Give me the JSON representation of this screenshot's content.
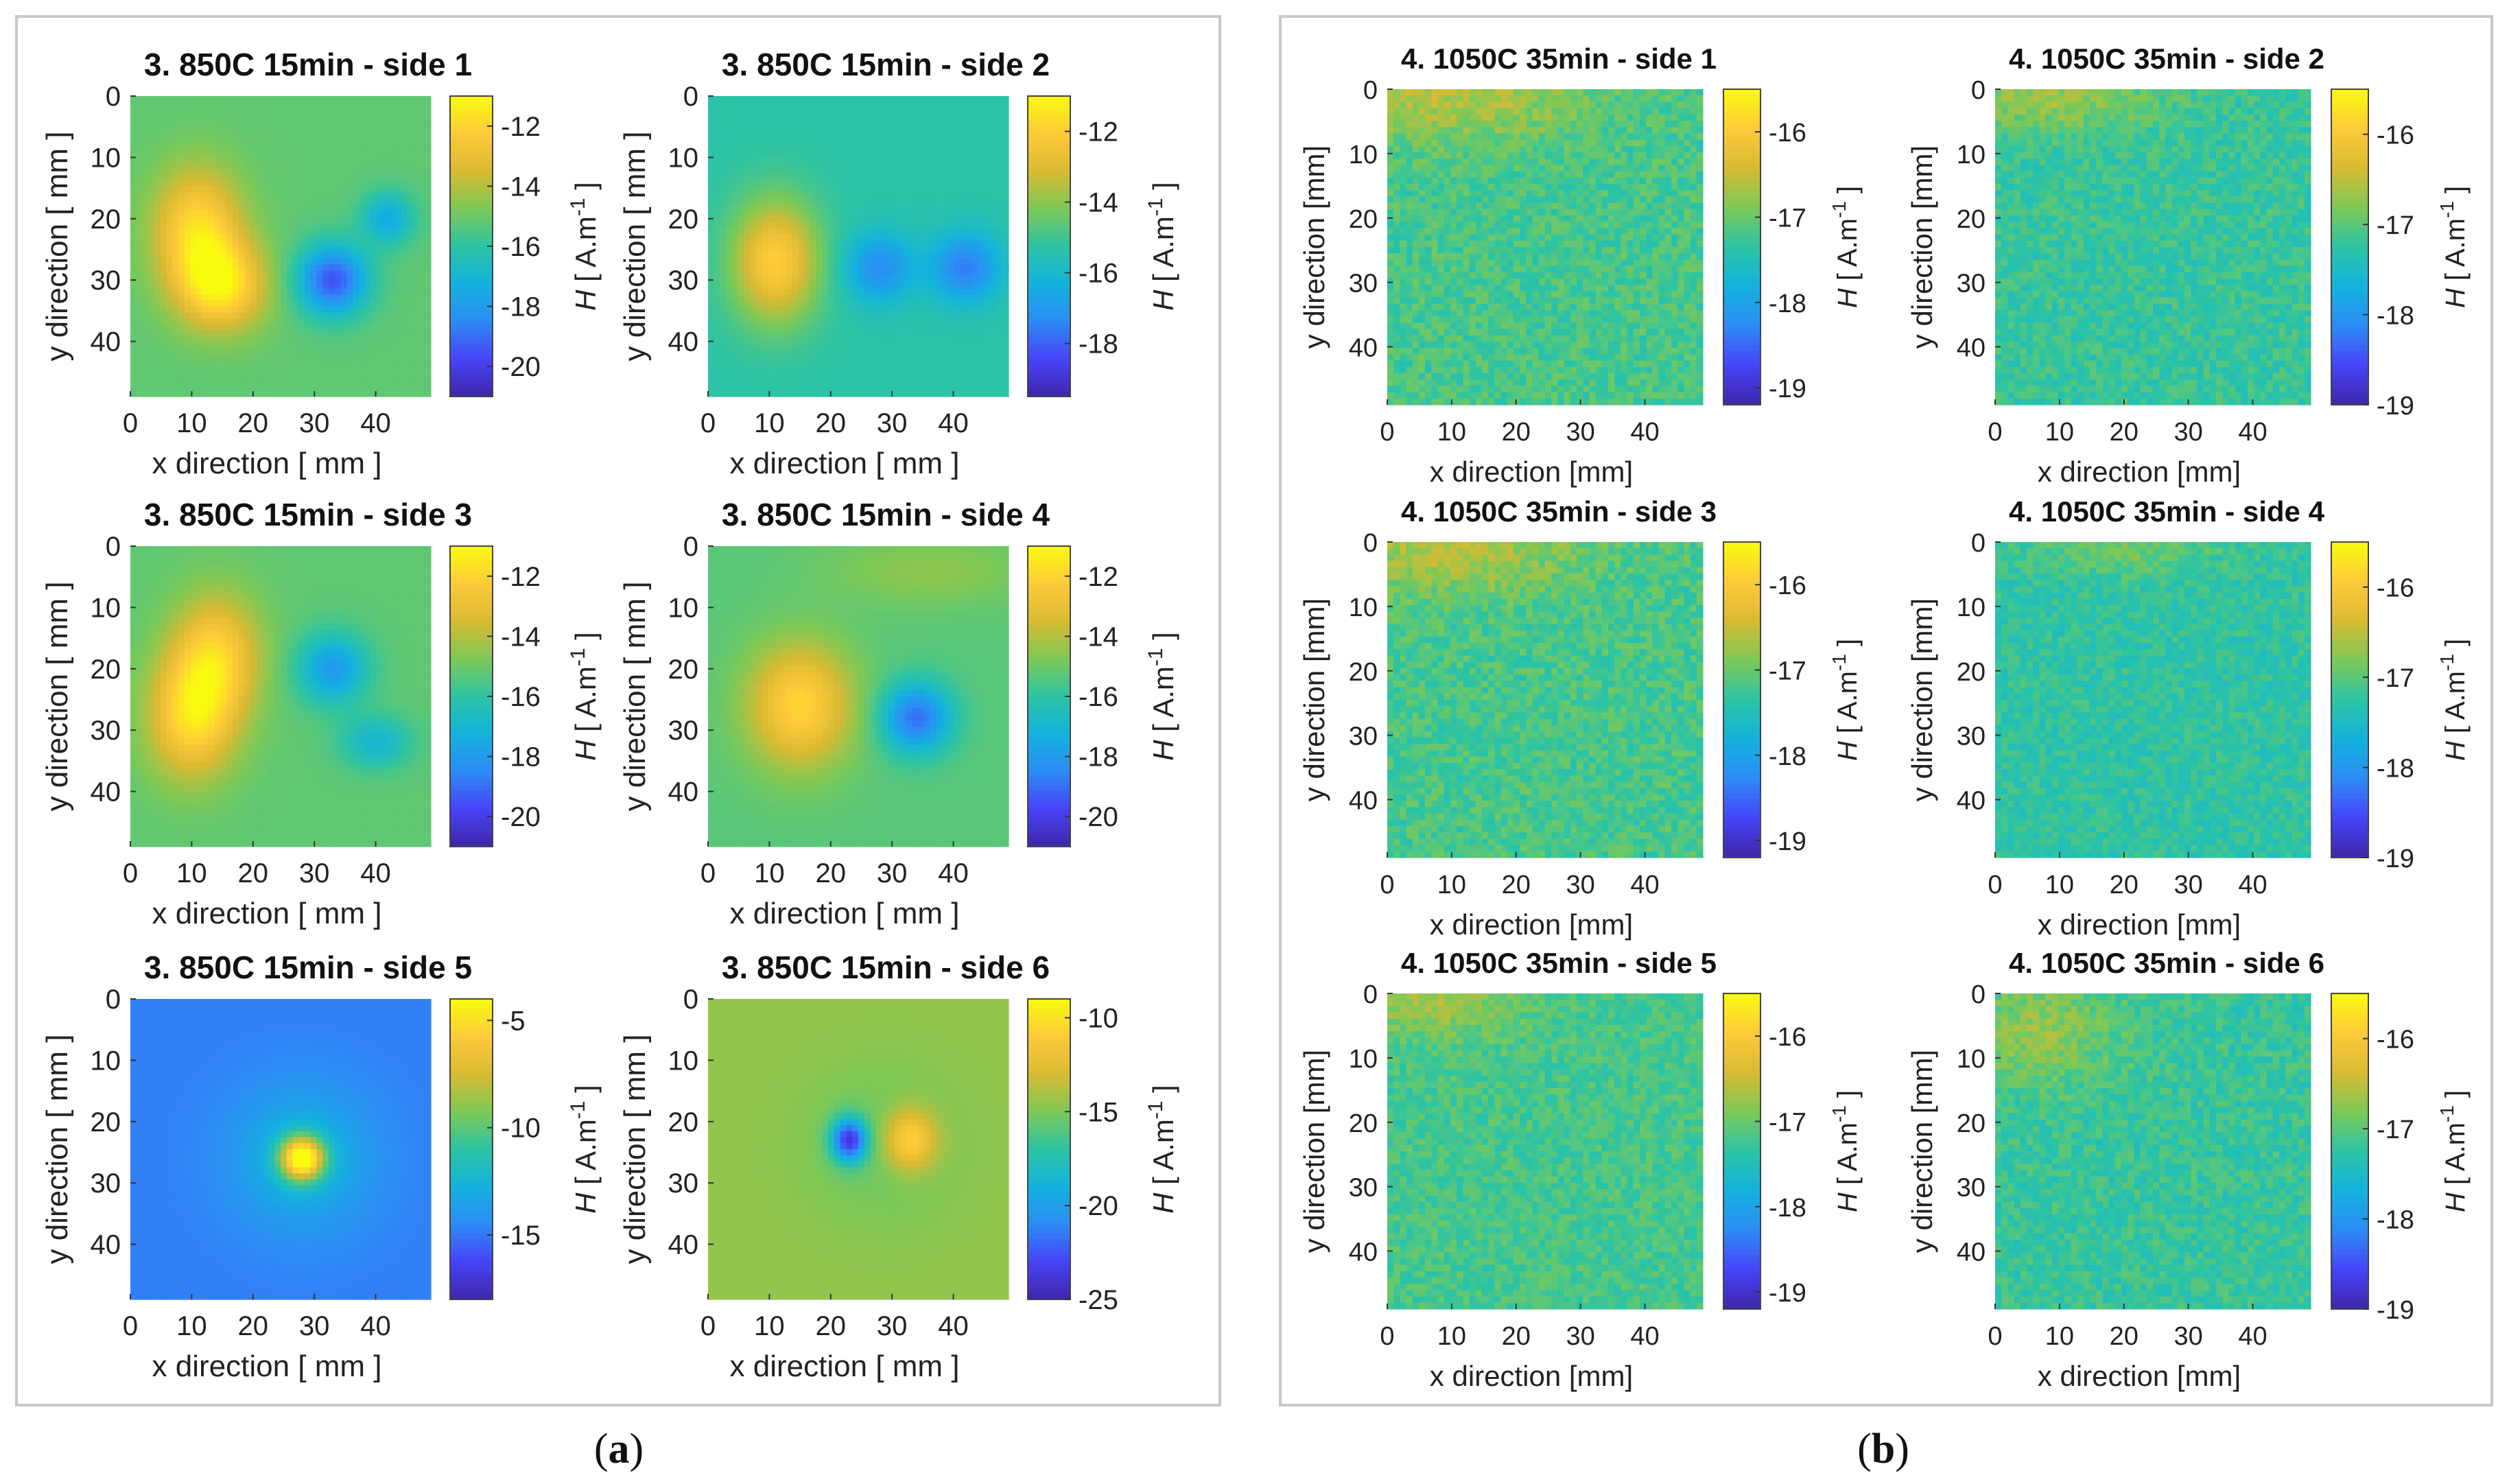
{
  "panel_labels": {
    "a": "a",
    "b": "b"
  },
  "colormap": [
    "#3e26a8",
    "#4743f8",
    "#2d8cf5",
    "#13b2de",
    "#2dc4a4",
    "#7dc957",
    "#d9ba32",
    "#feca3a",
    "#f9fb0e"
  ],
  "chart_data": [
    {
      "panel": "a",
      "type": "heatmap",
      "title": "3. 850C 15min - side 1",
      "xlabel": "x direction [ mm ]",
      "ylabel": "y direction [ mm ]",
      "clabel_prefix": "H [ A.m",
      "clabel_exp": "-1",
      "clabel_suffix": " ]",
      "xticks": [
        0,
        10,
        20,
        30,
        40
      ],
      "yticks": [
        0,
        10,
        20,
        30,
        40
      ],
      "cticks": [
        -12,
        -14,
        -16,
        -18,
        -20
      ],
      "crange": [
        -21,
        -11
      ],
      "background": -15.2,
      "blobs": [
        {
          "x": 11,
          "y": 22,
          "sx": 5,
          "sy": 7,
          "v": -11.8
        },
        {
          "x": 15,
          "y": 31,
          "sx": 5,
          "sy": 5,
          "v": -11.8
        },
        {
          "x": 33,
          "y": 30,
          "sx": 4,
          "sy": 4,
          "v": -19.5
        },
        {
          "x": 42,
          "y": 20,
          "sx": 3,
          "sy": 3,
          "v": -17.5
        }
      ]
    },
    {
      "panel": "a",
      "type": "heatmap",
      "title": "3. 850C 15min - side 2",
      "xlabel": "x direction [ mm ]",
      "ylabel": "y direction [ mm ]",
      "clabel_prefix": "H [ A.m",
      "clabel_exp": "-1",
      "clabel_suffix": " ]",
      "xticks": [
        0,
        10,
        20,
        30,
        40
      ],
      "yticks": [
        0,
        10,
        20,
        30,
        40
      ],
      "cticks": [
        -12,
        -14,
        -16,
        -18
      ],
      "crange": [
        -19.5,
        -11
      ],
      "background": -15.3,
      "blobs": [
        {
          "x": 11,
          "y": 27,
          "sx": 5,
          "sy": 7,
          "v": -12
        },
        {
          "x": 28,
          "y": 28,
          "sx": 4,
          "sy": 4,
          "v": -17.3
        },
        {
          "x": 42,
          "y": 28,
          "sx": 4,
          "sy": 4,
          "v": -17.6
        }
      ]
    },
    {
      "panel": "a",
      "type": "heatmap",
      "title": "3. 850C 15min - side 3",
      "xlabel": "x direction [ mm ]",
      "ylabel": "y direction [ mm ]",
      "clabel_prefix": "H [ A.m",
      "clabel_exp": "-1",
      "clabel_suffix": " ]",
      "xticks": [
        0,
        10,
        20,
        30,
        40
      ],
      "yticks": [
        0,
        10,
        20,
        30,
        40
      ],
      "cticks": [
        -12,
        -14,
        -16,
        -18,
        -20
      ],
      "crange": [
        -21,
        -11
      ],
      "background": -15.2,
      "blobs": [
        {
          "x": 10,
          "y": 28,
          "sx": 5,
          "sy": 7,
          "v": -12
        },
        {
          "x": 14,
          "y": 18,
          "sx": 5,
          "sy": 7,
          "v": -12.3
        },
        {
          "x": 33,
          "y": 20,
          "sx": 4,
          "sy": 4,
          "v": -18
        },
        {
          "x": 40,
          "y": 32,
          "sx": 4,
          "sy": 3,
          "v": -17
        }
      ]
    },
    {
      "panel": "a",
      "type": "heatmap",
      "title": "3. 850C 15min - side 4",
      "xlabel": "x direction [ mm ]",
      "ylabel": "y direction [ mm ]",
      "clabel_prefix": "H [ A.m",
      "clabel_exp": "-1",
      "clabel_suffix": " ]",
      "xticks": [
        0,
        10,
        20,
        30,
        40
      ],
      "yticks": [
        0,
        10,
        20,
        30,
        40
      ],
      "cticks": [
        -12,
        -14,
        -16,
        -18,
        -20
      ],
      "crange": [
        -21,
        -11
      ],
      "background": -15.3,
      "blobs": [
        {
          "x": 15,
          "y": 26,
          "sx": 6,
          "sy": 7,
          "v": -12
        },
        {
          "x": 34,
          "y": 28,
          "sx": 4,
          "sy": 4,
          "v": -19
        },
        {
          "x": 36,
          "y": 4,
          "sx": 12,
          "sy": 4,
          "v": -14.5
        }
      ]
    },
    {
      "panel": "a",
      "type": "heatmap",
      "title": "3. 850C 15min - side 5",
      "xlabel": "x direction [ mm ]",
      "ylabel": "y direction [ mm ]",
      "clabel_prefix": "H [ A.m",
      "clabel_exp": "-1",
      "clabel_suffix": " ]",
      "xticks": [
        0,
        10,
        20,
        30,
        40
      ],
      "yticks": [
        0,
        10,
        20,
        30,
        40
      ],
      "cticks": [
        -5,
        -10,
        -15
      ],
      "crange": [
        -18,
        -4
      ],
      "background": -14.8,
      "blobs": [
        {
          "x": 28,
          "y": 26,
          "sx": 2.5,
          "sy": 2.5,
          "v": -4.5
        },
        {
          "x": 28,
          "y": 26,
          "sx": 8,
          "sy": 8,
          "v": -12.5
        }
      ]
    },
    {
      "panel": "a",
      "type": "heatmap",
      "title": "3. 850C 15min - side 6",
      "xlabel": "x direction [ mm ]",
      "ylabel": "y direction [ mm ]",
      "clabel_prefix": "H [ A.m",
      "clabel_exp": "-1",
      "clabel_suffix": " ]",
      "xticks": [
        0,
        10,
        20,
        30,
        40
      ],
      "yticks": [
        0,
        10,
        20,
        30,
        40
      ],
      "cticks": [
        -10,
        -15,
        -20,
        -25
      ],
      "crange": [
        -25,
        -9
      ],
      "background": -14.5,
      "blobs": [
        {
          "x": 33,
          "y": 23,
          "sx": 3,
          "sy": 3.5,
          "v": -10
        },
        {
          "x": 23,
          "y": 23,
          "sx": 2,
          "sy": 2.5,
          "v": -23
        },
        {
          "x": 28,
          "y": 24,
          "sx": 9,
          "sy": 9,
          "v": -15.5
        }
      ]
    },
    {
      "panel": "b",
      "type": "heatmap",
      "title": "4. 1050C 35min - side 1",
      "xlabel": "x direction [mm]",
      "ylabel": "y direction [mm]",
      "clabel_prefix": "H [ A.m",
      "clabel_exp": "-1",
      "clabel_suffix": " ]",
      "xticks": [
        0,
        10,
        20,
        30,
        40
      ],
      "yticks": [
        0,
        10,
        20,
        30,
        40
      ],
      "cticks": [
        -16,
        -17,
        -18,
        -19
      ],
      "crange": [
        -19.2,
        -15.5
      ],
      "background": -17.2,
      "noise": 0.25,
      "blobs": [
        {
          "x": 10,
          "y": 1,
          "sx": 14,
          "sy": 5,
          "v": -16.6
        }
      ]
    },
    {
      "panel": "b",
      "type": "heatmap",
      "title": "4. 1050C 35min - side 2",
      "xlabel": "x direction [mm]",
      "ylabel": "y direction [mm]",
      "clabel_prefix": "H [ A.m",
      "clabel_exp": "-1",
      "clabel_suffix": " ]",
      "xticks": [
        0,
        10,
        20,
        30,
        40
      ],
      "yticks": [
        0,
        10,
        20,
        30,
        40
      ],
      "cticks": [
        -16,
        -17,
        -18,
        -19
      ],
      "crange": [
        -19.0,
        -15.5
      ],
      "background": -17.2,
      "noise": 0.22,
      "blobs": [
        {
          "x": 8,
          "y": 1,
          "sx": 12,
          "sy": 4,
          "v": -16.7
        }
      ]
    },
    {
      "panel": "b",
      "type": "heatmap",
      "title": "4. 1050C 35min - side 3",
      "xlabel": "x direction [mm]",
      "ylabel": "y direction [mm]",
      "clabel_prefix": "H [ A.m",
      "clabel_exp": "-1",
      "clabel_suffix": " ]",
      "xticks": [
        0,
        10,
        20,
        30,
        40
      ],
      "yticks": [
        0,
        10,
        20,
        30,
        40
      ],
      "cticks": [
        -16,
        -17,
        -18,
        -19
      ],
      "crange": [
        -19.2,
        -15.5
      ],
      "background": -17.2,
      "noise": 0.25,
      "blobs": [
        {
          "x": 10,
          "y": 1,
          "sx": 14,
          "sy": 5,
          "v": -16.6
        }
      ]
    },
    {
      "panel": "b",
      "type": "heatmap",
      "title": "4. 1050C 35min - side  4",
      "xlabel": "x direction [mm]",
      "ylabel": "y direction [mm]",
      "clabel_prefix": "H [ A.m",
      "clabel_exp": "-1",
      "clabel_suffix": " ]",
      "xticks": [
        0,
        10,
        20,
        30,
        40
      ],
      "yticks": [
        0,
        10,
        20,
        30,
        40
      ],
      "cticks": [
        -16,
        -17,
        -18,
        -19
      ],
      "crange": [
        -19.0,
        -15.5
      ],
      "background": -17.25,
      "noise": 0.2,
      "blobs": [
        {
          "x": 20,
          "y": 1,
          "sx": 10,
          "sy": 3,
          "v": -16.9
        }
      ]
    },
    {
      "panel": "b",
      "type": "heatmap",
      "title": "4. 1050C 35min - side  5",
      "xlabel": "x direction [mm]",
      "ylabel": "y direction [mm]",
      "clabel_prefix": "H [ A.m",
      "clabel_exp": "-1",
      "clabel_suffix": " ]",
      "xticks": [
        0,
        10,
        20,
        30,
        40
      ],
      "yticks": [
        0,
        10,
        20,
        30,
        40
      ],
      "cticks": [
        -16,
        -17,
        -18,
        -19
      ],
      "crange": [
        -19.2,
        -15.5
      ],
      "background": -17.2,
      "noise": 0.22,
      "blobs": [
        {
          "x": 6,
          "y": 1,
          "sx": 10,
          "sy": 4,
          "v": -16.7
        }
      ]
    },
    {
      "panel": "b",
      "type": "heatmap",
      "title": "4. 1050C 35min - side 6",
      "xlabel": "x direction [mm]",
      "ylabel": "y direction [mm]",
      "clabel_prefix": "H [ A.m",
      "clabel_exp": "-1",
      "clabel_suffix": " ]",
      "xticks": [
        0,
        10,
        20,
        30,
        40
      ],
      "yticks": [
        0,
        10,
        20,
        30,
        40
      ],
      "cticks": [
        -16,
        -17,
        -18,
        -19
      ],
      "crange": [
        -19.0,
        -15.5
      ],
      "background": -17.2,
      "noise": 0.22,
      "blobs": [
        {
          "x": 7,
          "y": 6,
          "sx": 8,
          "sy": 6,
          "v": -16.7
        }
      ]
    }
  ]
}
